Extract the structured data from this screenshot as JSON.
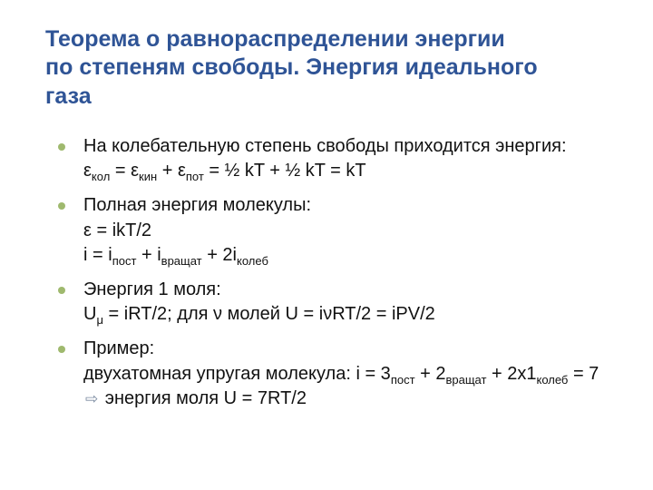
{
  "colors": {
    "title": "#2f5496",
    "body_text": "#111111",
    "bullet": "#9fb96e",
    "arrow": "#7a8aa0",
    "background": "#ffffff"
  },
  "typography": {
    "title_fontsize": 25,
    "title_weight": "bold",
    "body_fontsize": 20,
    "font_family": "Arial"
  },
  "title_lines": [
    "Теорема о равнораспределении энергии",
    "по степеням свободы. Энергия идеального",
    "газа"
  ],
  "bullets": [
    {
      "lead": "На колебательную степень свободы приходится энергия:",
      "eq1": {
        "prefix": "ε",
        "sub1": "кол",
        "mid1": " = ε",
        "sub2": "кин",
        "mid2": " + ε",
        "sub3": "пот",
        "tail": " = ½ kT + ½ kT = kT"
      }
    },
    {
      "lead": "Полная энергия молекулы:",
      "line_a": "ε = ikT/2",
      "eq2": {
        "prefix": "i = i",
        "sub1": "пост",
        "mid1": " + i",
        "sub2": "вращат",
        "mid2": " + 2i",
        "sub3": "колеб"
      }
    },
    {
      "lead": "Энергия 1 моля:",
      "eq3": {
        "prefix": "U",
        "sub1": "μ",
        "tail": " = iRT/2; для ν молей U = iνRT/2 = iPV/2"
      }
    },
    {
      "lead": "Пример:",
      "eq4": {
        "prefix": "двухатомная упругая молекула: i = 3",
        "sub1": "пост",
        "mid1": " + 2",
        "sub2": "вращат",
        "mid2": " + 2x1",
        "sub3": "колеб",
        "after": " = 7 ",
        "arrow": "⇨",
        "tail": " энергия моля U = 7RT/2"
      }
    }
  ]
}
